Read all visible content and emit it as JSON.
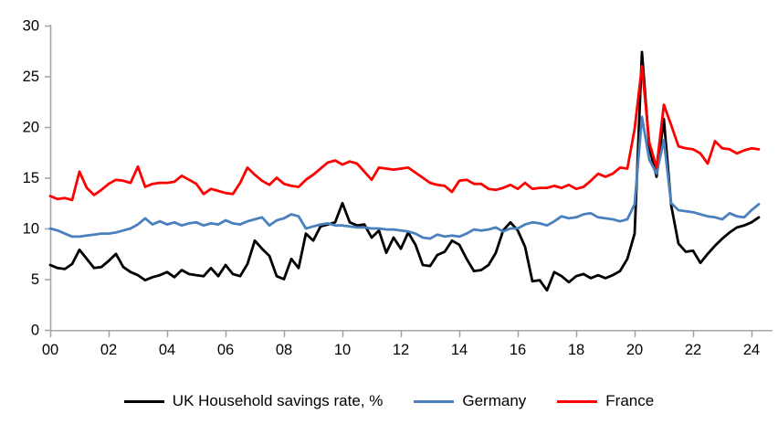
{
  "chart_data": {
    "type": "line",
    "title": "",
    "frequency": "quarterly",
    "x_start_label": "00",
    "x_tick_labels": [
      "00",
      "02",
      "04",
      "06",
      "08",
      "10",
      "12",
      "14",
      "16",
      "18",
      "20",
      "22",
      "24"
    ],
    "y_ticks": [
      0,
      5,
      10,
      15,
      20,
      25,
      30
    ],
    "ylim": [
      0,
      30
    ],
    "grid": false,
    "legend_position": "bottom",
    "axis_color": "#a6a6a6",
    "label_color": "#000000",
    "series": [
      {
        "name": "UK Household savings rate, %",
        "slug": "uk-household-savings-rate",
        "color": "#000000",
        "values": [
          6.4,
          6.1,
          6.0,
          6.5,
          7.9,
          7.0,
          6.1,
          6.2,
          6.8,
          7.5,
          6.2,
          5.7,
          5.4,
          4.9,
          5.2,
          5.4,
          5.7,
          5.2,
          5.9,
          5.5,
          5.4,
          5.3,
          6.1,
          5.3,
          6.4,
          5.5,
          5.3,
          6.5,
          8.8,
          8.0,
          7.3,
          5.3,
          5.0,
          7.0,
          6.1,
          9.5,
          8.8,
          10.2,
          10.4,
          10.6,
          12.5,
          10.6,
          10.3,
          10.4,
          9.1,
          9.8,
          7.6,
          9.1,
          8.0,
          9.6,
          8.4,
          6.4,
          6.3,
          7.4,
          7.7,
          8.8,
          8.4,
          7.0,
          5.8,
          5.9,
          6.4,
          7.6,
          9.8,
          10.6,
          9.8,
          8.2,
          4.8,
          4.9,
          3.9,
          5.7,
          5.3,
          4.7,
          5.3,
          5.5,
          5.1,
          5.4,
          5.1,
          5.4,
          5.8,
          7.0,
          9.5,
          27.4,
          18.0,
          15.1,
          20.8,
          12.3,
          8.5,
          7.7,
          7.8,
          6.6,
          7.5,
          8.3,
          9.0,
          9.6,
          10.1,
          10.3,
          10.6,
          11.1
        ]
      },
      {
        "name": "Germany",
        "slug": "germany",
        "color": "#4a80be",
        "values": [
          10.0,
          9.8,
          9.5,
          9.2,
          9.2,
          9.3,
          9.4,
          9.5,
          9.5,
          9.6,
          9.8,
          10.0,
          10.4,
          11.0,
          10.4,
          10.7,
          10.4,
          10.6,
          10.3,
          10.5,
          10.6,
          10.3,
          10.5,
          10.4,
          10.8,
          10.5,
          10.4,
          10.7,
          10.9,
          11.1,
          10.3,
          10.8,
          11.0,
          11.4,
          11.2,
          10.0,
          10.2,
          10.4,
          10.5,
          10.3,
          10.3,
          10.2,
          10.1,
          10.1,
          10.0,
          10.0,
          9.9,
          9.9,
          9.8,
          9.7,
          9.5,
          9.1,
          9.0,
          9.4,
          9.2,
          9.3,
          9.2,
          9.5,
          9.9,
          9.8,
          9.9,
          10.1,
          9.7,
          10.0,
          10.0,
          10.4,
          10.6,
          10.5,
          10.3,
          10.7,
          11.2,
          11.0,
          11.1,
          11.4,
          11.5,
          11.1,
          11.0,
          10.9,
          10.7,
          10.9,
          12.4,
          21.0,
          16.8,
          15.4,
          18.7,
          12.5,
          11.8,
          11.7,
          11.6,
          11.4,
          11.2,
          11.1,
          10.9,
          11.5,
          11.2,
          11.1,
          11.8,
          12.4
        ]
      },
      {
        "name": "France",
        "slug": "france",
        "color": "#fe0000",
        "values": [
          13.2,
          12.9,
          13.0,
          12.8,
          15.6,
          14.0,
          13.3,
          13.8,
          14.4,
          14.8,
          14.7,
          14.5,
          16.1,
          14.1,
          14.4,
          14.5,
          14.5,
          14.6,
          15.2,
          14.8,
          14.4,
          13.4,
          13.9,
          13.7,
          13.5,
          13.4,
          14.5,
          16.0,
          15.3,
          14.7,
          14.3,
          15.0,
          14.4,
          14.2,
          14.1,
          14.8,
          15.3,
          15.9,
          16.5,
          16.7,
          16.3,
          16.6,
          16.4,
          15.6,
          14.8,
          16.0,
          15.9,
          15.8,
          15.9,
          16.0,
          15.5,
          15.0,
          14.5,
          14.3,
          14.2,
          13.6,
          14.7,
          14.8,
          14.4,
          14.4,
          13.9,
          13.8,
          14.0,
          14.3,
          13.9,
          14.5,
          13.9,
          14.0,
          14.0,
          14.2,
          14.0,
          14.3,
          13.9,
          14.1,
          14.7,
          15.4,
          15.1,
          15.4,
          16.0,
          15.9,
          19.8,
          26.0,
          18.5,
          16.0,
          22.2,
          20.2,
          18.1,
          17.9,
          17.8,
          17.4,
          16.4,
          18.6,
          17.9,
          17.8,
          17.4,
          17.7,
          17.9,
          17.8
        ]
      }
    ]
  }
}
